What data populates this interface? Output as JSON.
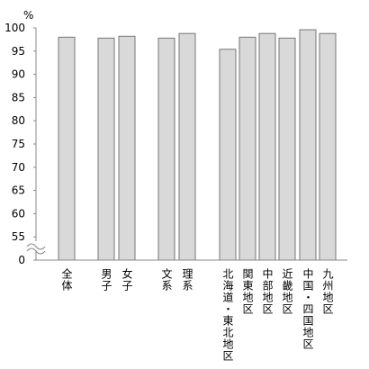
{
  "chart_data": {
    "type": "bar",
    "y_unit": "%",
    "categories": [
      "全体",
      "男子",
      "女子",
      "文系",
      "理系",
      "北海道・東北地区",
      "関東地区",
      "中部地区",
      "近畿地区",
      "中国・四国地区",
      "九州地区"
    ],
    "values": [
      98,
      97.8,
      98.2,
      97.8,
      98.8,
      95.4,
      98,
      98.8,
      97.8,
      99.6,
      98.8
    ],
    "color": "#d9d9d9",
    "ylim": [
      0,
      100
    ],
    "ybreak": [
      0,
      55
    ],
    "yticks": [
      0,
      55,
      60,
      65,
      70,
      75,
      80,
      85,
      90,
      95,
      100
    ]
  }
}
